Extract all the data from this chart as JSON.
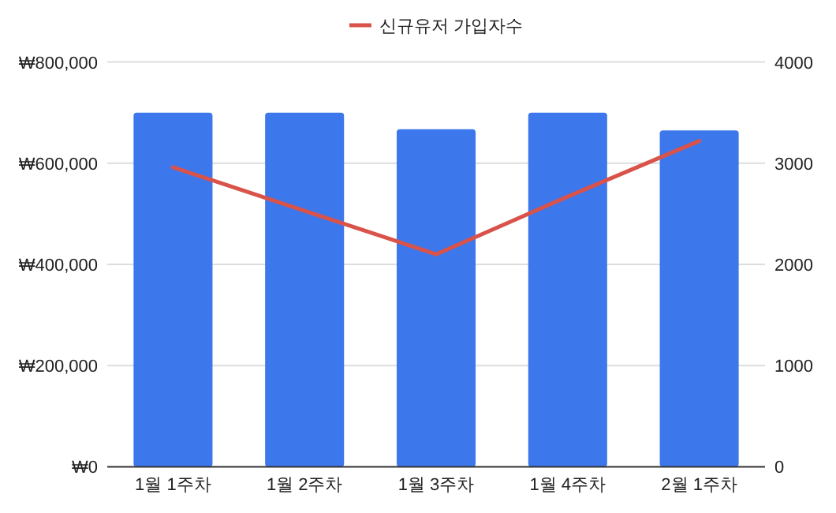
{
  "chart_data": {
    "type": "bar",
    "categories": [
      "1월 1주차",
      "1월 2주차",
      "1월 3주차",
      "1월 4주차",
      "2월 1주차"
    ],
    "series": [
      {
        "color": "#3c78ec",
        "axis": "y",
        "values": [
          700000,
          700000,
          667000,
          700000,
          665000
        ]
      },
      {
        "type": "line",
        "name": "신규유저 가입자수",
        "color": "#d9534a",
        "axis": "y2",
        "values": [
          2960,
          2530,
          2100,
          2670,
          3220
        ]
      }
    ],
    "ylim": [
      0,
      800000
    ],
    "yticks": [
      {
        "value": 0,
        "label": "₩0"
      },
      {
        "value": 200000,
        "label": "₩200,000"
      },
      {
        "value": 400000,
        "label": "₩400,000"
      },
      {
        "value": 600000,
        "label": "₩600,000"
      },
      {
        "value": 800000,
        "label": "₩800,000"
      }
    ],
    "y2lim": [
      0,
      4000
    ],
    "y2ticks": [
      0,
      1000,
      2000,
      3000,
      4000
    ],
    "grid": "y",
    "legend": "top"
  }
}
